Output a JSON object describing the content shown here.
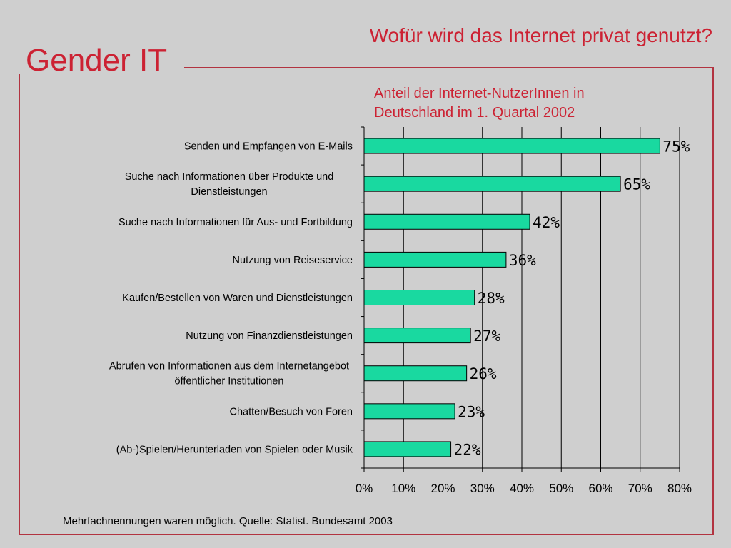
{
  "header": {
    "brand": "Gender IT",
    "headline": "Wofür wird das Internet privat genutzt?"
  },
  "footnote": "Mehrfachnennungen waren möglich. Quelle: Statist. Bundesamt 2003",
  "colors": {
    "accent": "#cc2233",
    "frame": "#b23340",
    "bar": "#19d9a0",
    "background": "#cfcfcf"
  },
  "chart_data": {
    "type": "bar",
    "orientation": "horizontal",
    "title_lines": [
      "Anteil der Internet-NutzerInnen in",
      "Deutschland im 1. Quartal 2002"
    ],
    "categories": [
      [
        "Senden und Empfangen von E-Mails"
      ],
      [
        "Suche nach Informationen über Produkte und",
        "Dienstleistungen"
      ],
      [
        "Suche nach Informationen für Aus- und Fortbildung"
      ],
      [
        "Nutzung von Reiseservice"
      ],
      [
        "Kaufen/Bestellen von Waren und Dienstleistungen"
      ],
      [
        "Nutzung von Finanzdienstleistungen"
      ],
      [
        "Abrufen von Informationen aus dem Internetangebot",
        "öffentlicher Institutionen"
      ],
      [
        "Chatten/Besuch von Foren"
      ],
      [
        "(Ab-)Spielen/Herunterladen von Spielen oder Musik"
      ]
    ],
    "values": [
      75,
      65,
      42,
      36,
      28,
      27,
      26,
      23,
      22
    ],
    "value_labels": [
      "75%",
      "65%",
      "42%",
      "36%",
      "28%",
      "27%",
      "26%",
      "23%",
      "22%"
    ],
    "xlim": [
      0,
      80
    ],
    "xticks": [
      0,
      10,
      20,
      30,
      40,
      50,
      60,
      70,
      80
    ],
    "xtick_labels": [
      "0%",
      "10%",
      "20%",
      "30%",
      "40%",
      "50%",
      "60%",
      "70%",
      "80%"
    ],
    "grid": true
  }
}
